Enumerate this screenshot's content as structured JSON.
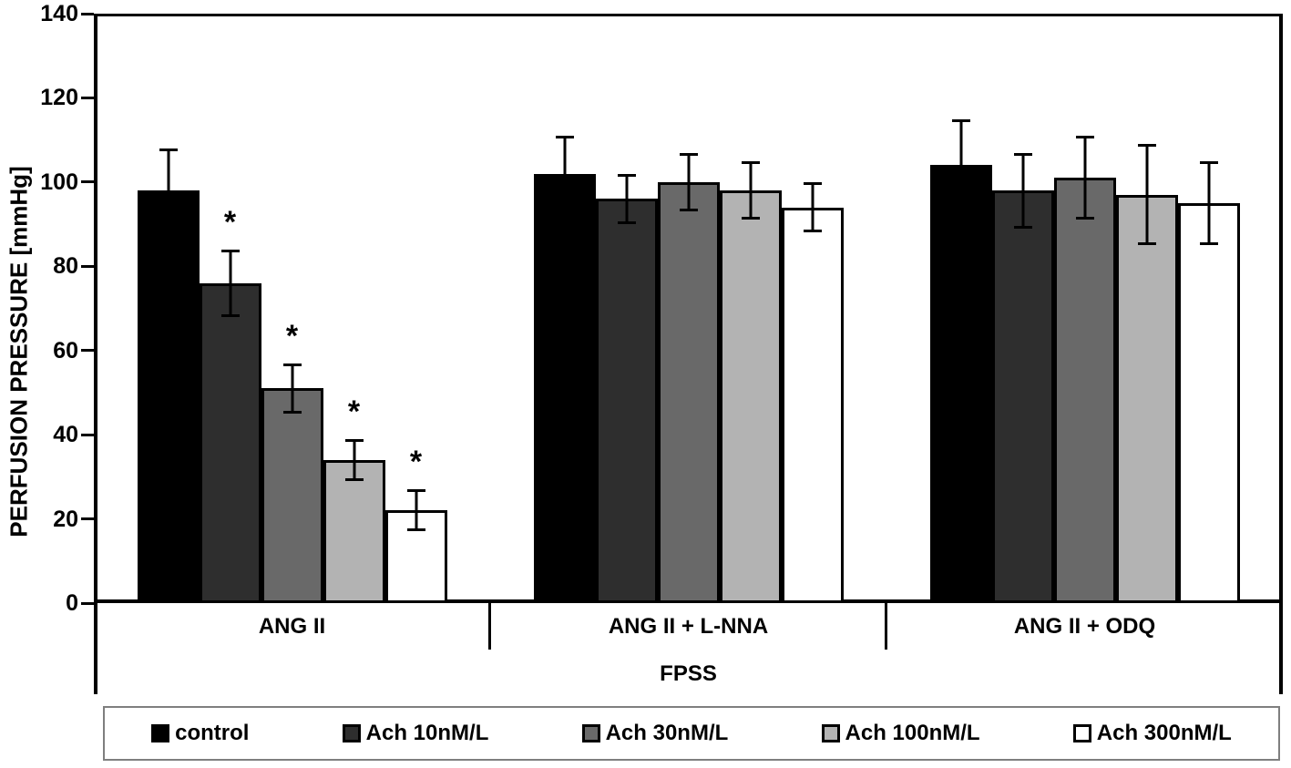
{
  "y_axis": {
    "title": "PERFUSION PRESSURE [mmHg]",
    "ticks": [
      0,
      20,
      40,
      60,
      80,
      100,
      120,
      140
    ]
  },
  "x_axis": {
    "group_labels": [
      "ANG II",
      "ANG II + L-NNA",
      "ANG II + ODQ"
    ],
    "axis_label": "FPSS"
  },
  "legend": {
    "items": [
      {
        "label": "control",
        "color": "#000000",
        "border": "#000000"
      },
      {
        "label": "Ach 10nM/L",
        "color": "#2e2e2e",
        "border": "#000000"
      },
      {
        "label": "Ach 30nM/L",
        "color": "#696969",
        "border": "#000000"
      },
      {
        "label": "Ach 100nM/L",
        "color": "#b3b3b3",
        "border": "#000000"
      },
      {
        "label": "Ach 300nM/L",
        "color": "#ffffff",
        "border": "#000000"
      }
    ]
  },
  "significance_marker": "*",
  "chart_data": {
    "type": "bar",
    "title": "",
    "xlabel": "FPSS",
    "ylabel": "PERFUSION PRESSURE [mmHg]",
    "ylim": [
      0,
      140
    ],
    "yticks": [
      0,
      20,
      40,
      60,
      80,
      100,
      120,
      140
    ],
    "grid": false,
    "legend_position": "bottom",
    "error_bars": true,
    "categories": [
      "ANG II",
      "ANG II + L-NNA",
      "ANG II + ODQ"
    ],
    "series": [
      {
        "name": "control",
        "color": "#000000",
        "values": [
          98,
          102,
          104
        ],
        "errors": [
          10,
          9,
          11
        ],
        "significant": [
          false,
          false,
          false
        ]
      },
      {
        "name": "Ach 10nM/L",
        "color": "#2e2e2e",
        "values": [
          76,
          96,
          98
        ],
        "errors": [
          8,
          6,
          9
        ],
        "significant": [
          true,
          false,
          false
        ]
      },
      {
        "name": "Ach 30nM/L",
        "color": "#696969",
        "values": [
          51,
          100,
          101
        ],
        "errors": [
          6,
          7,
          10
        ],
        "significant": [
          true,
          false,
          false
        ]
      },
      {
        "name": "Ach 100nM/L",
        "color": "#b3b3b3",
        "values": [
          34,
          98,
          97
        ],
        "errors": [
          5,
          7,
          12
        ],
        "significant": [
          true,
          false,
          false
        ]
      },
      {
        "name": "Ach 300nM/L",
        "color": "#ffffff",
        "values": [
          22,
          94,
          95
        ],
        "errors": [
          5,
          6,
          10
        ],
        "significant": [
          true,
          false,
          false
        ]
      }
    ],
    "annotation_note": "* above bars in ANG II group marks significance"
  }
}
